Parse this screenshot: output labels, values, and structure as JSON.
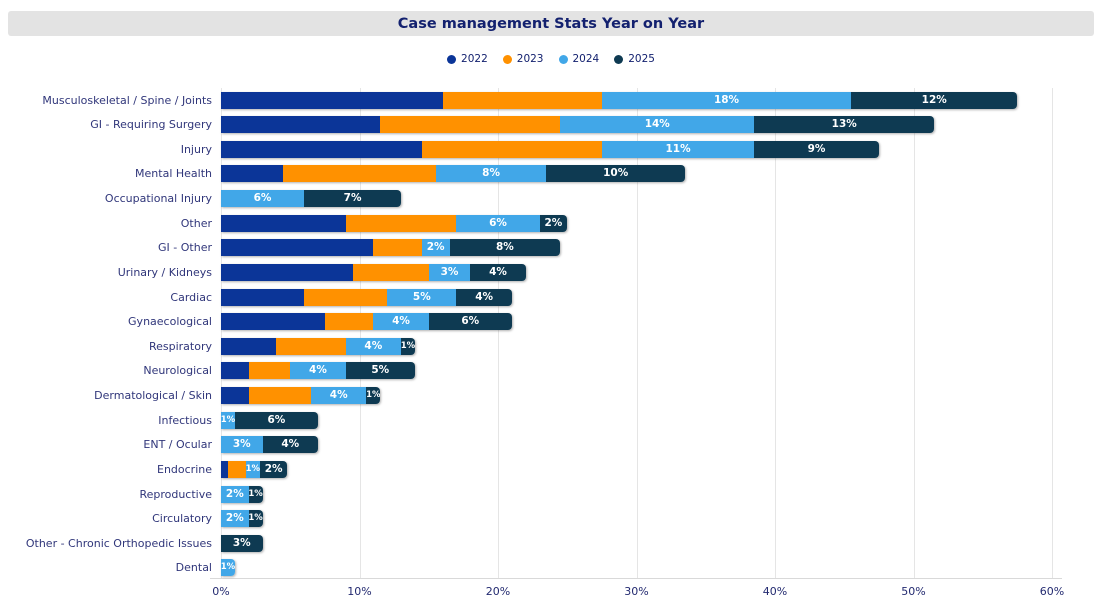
{
  "title": "Case management Stats Year on Year",
  "colors": {
    "y2022": "#0b3598",
    "y2023": "#ff9100",
    "y2024": "#41a7e8",
    "y2025": "#0e3a52",
    "title_text": "#13216f",
    "title_bg": "#e3e3e3",
    "axis_text": "#232a70",
    "category_text": "#30367a",
    "gridline": "#e5e5e5",
    "bar_label_text": "#ffffff"
  },
  "legend": [
    {
      "label": "2022",
      "color": "#0b3598"
    },
    {
      "label": "2023",
      "color": "#ff9100"
    },
    {
      "label": "2024",
      "color": "#41a7e8"
    },
    {
      "label": "2025",
      "color": "#0e3a52"
    }
  ],
  "x_axis": {
    "tick_labels": [
      "0%",
      "10%",
      "20%",
      "30%",
      "40%",
      "50%",
      "60%"
    ],
    "min": 0,
    "max": 60
  },
  "chart_data": {
    "type": "bar",
    "orientation": "horizontal",
    "stacked": true,
    "title": "Case management Stats Year on Year",
    "xlabel": "",
    "ylabel": "",
    "xlim": [
      0,
      60
    ],
    "grid": true,
    "legend_position": "top-center",
    "value_labels_shown_for_series": [
      "2024",
      "2025"
    ],
    "value_label_format": "{value}%",
    "categories": [
      "Musculoskeletal / Spine / Joints",
      "GI - Requiring Surgery",
      "Injury",
      "Mental Health",
      "Occupational Injury",
      "Other",
      "GI - Other",
      "Urinary / Kidneys",
      "Cardiac",
      "Gynaecological",
      "Respiratory",
      "Neurological",
      "Dermatological / Skin",
      "Infectious",
      "ENT / Ocular",
      "Endocrine",
      "Reproductive",
      "Circulatory",
      "Other - Chronic Orthopedic Issues",
      "Dental"
    ],
    "series": [
      {
        "name": "2022",
        "color": "#0b3598",
        "values": [
          16,
          11.5,
          14.5,
          4.5,
          0,
          9,
          11,
          9.5,
          6,
          7.5,
          4,
          2,
          2,
          0,
          0,
          0.5,
          0,
          0,
          0,
          0
        ]
      },
      {
        "name": "2023",
        "color": "#ff9100",
        "values": [
          11.5,
          13,
          13,
          11,
          0,
          8,
          3.5,
          5.5,
          6,
          3.5,
          5,
          3,
          4.5,
          0,
          0,
          1.3,
          0,
          0,
          0,
          0
        ]
      },
      {
        "name": "2024",
        "color": "#41a7e8",
        "values": [
          18,
          14,
          11,
          8,
          6,
          6,
          2,
          3,
          5,
          4,
          4,
          4,
          4,
          1,
          3,
          1,
          2,
          2,
          0,
          1
        ]
      },
      {
        "name": "2025",
        "color": "#0e3a52",
        "values": [
          12,
          13,
          9,
          10,
          7,
          2,
          8,
          4,
          4,
          6,
          1,
          5,
          1,
          6,
          4,
          2,
          1,
          1,
          3,
          0
        ]
      }
    ]
  }
}
